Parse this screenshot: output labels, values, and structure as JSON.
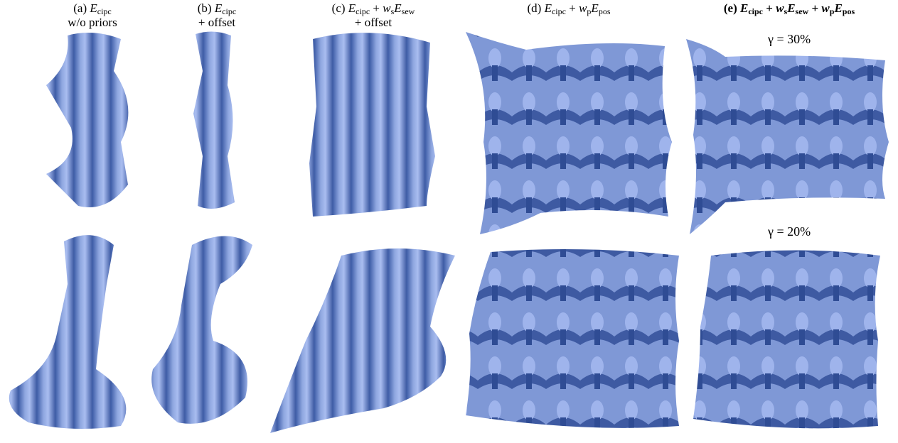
{
  "columns": [
    {
      "tokens": [
        "(a)",
        "E",
        "cipc"
      ],
      "line2": "w/o priors"
    },
    {
      "tokens": [
        "(b)",
        "E",
        "cipc"
      ],
      "line2": "+ offset"
    },
    {
      "tokens": [
        "(c)",
        "E",
        "cipc",
        "+",
        "w",
        "s",
        "E",
        "sew"
      ],
      "line2": "+ offset"
    },
    {
      "tokens": [
        "(d)",
        "E",
        "cipc",
        "+",
        "w",
        "p",
        "E",
        "pos"
      ]
    },
    {
      "tokens": [
        "(e)",
        "E",
        "cipc",
        "+",
        "w",
        "s",
        "E",
        "sew",
        "+",
        "w",
        "p",
        "E",
        "pos"
      ]
    }
  ],
  "annotations": [
    "γ = 30%",
    "γ = 20%"
  ]
}
